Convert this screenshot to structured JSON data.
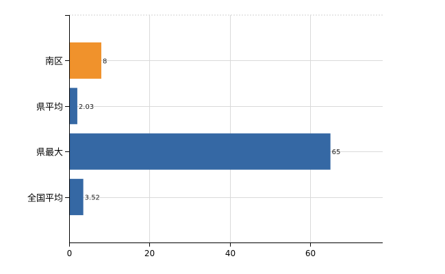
{
  "chart_data": {
    "type": "bar",
    "orientation": "horizontal",
    "categories": [
      "南区",
      "県平均",
      "県最大",
      "全国平均"
    ],
    "values": [
      8,
      2.03,
      65,
      3.52
    ],
    "value_labels": [
      "8",
      "2.03",
      "65",
      "3.52"
    ],
    "bar_colors": [
      "#f0922c",
      "#3568a4",
      "#3568a4",
      "#3568a4"
    ],
    "xlim": [
      0,
      78
    ],
    "xticks": [
      0,
      20,
      40,
      60
    ],
    "xtick_labels": [
      "0",
      "20",
      "40",
      "60"
    ],
    "grid": true,
    "title": "",
    "xlabel": "",
    "ylabel": ""
  }
}
